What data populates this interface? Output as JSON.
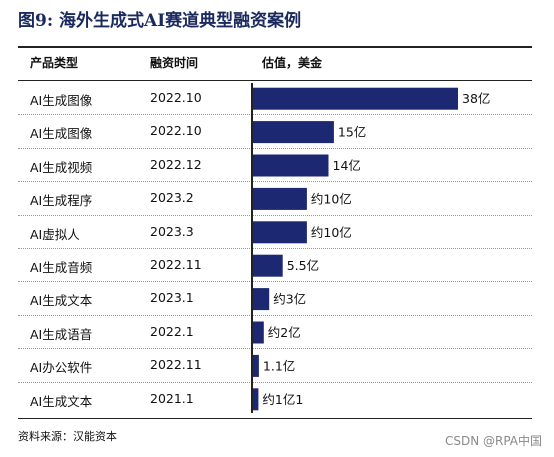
{
  "figure": {
    "title": "图9: 海外生成式AI赛道典型融资案例",
    "source": "资料来源：汉能资本",
    "watermark": "CSDN @RPA中国"
  },
  "table": {
    "headers": {
      "type": "产品类型",
      "date": "融资时间",
      "valuation": "估值，美金"
    }
  },
  "chart_data": {
    "type": "bar",
    "orientation": "horizontal",
    "categories": [
      "AI生成图像",
      "AI生成图像",
      "AI生成视频",
      "AI生成程序",
      "AI虚拟人",
      "AI生成音频",
      "AI生成文本",
      "AI生成语音",
      "AI办公软件",
      "AI生成文本"
    ],
    "dates": [
      "2022.10",
      "2022.10",
      "2022.12",
      "2023.2",
      "2023.3",
      "2022.11",
      "2023.1",
      "2022.1",
      "2022.11",
      "2021.1"
    ],
    "values": [
      38,
      15,
      14,
      10,
      10,
      5.5,
      3,
      2,
      1.1,
      1
    ],
    "value_labels": [
      "38亿",
      "15亿",
      "14亿",
      "约10亿",
      "约10亿",
      "5.5亿",
      "约3亿",
      "约2亿",
      "1.1亿",
      "约1亿1"
    ],
    "ylabel": "估值，美金",
    "xlim": [
      0,
      38
    ],
    "bar_color": "#1c2872",
    "grid": false,
    "legend": "none"
  }
}
